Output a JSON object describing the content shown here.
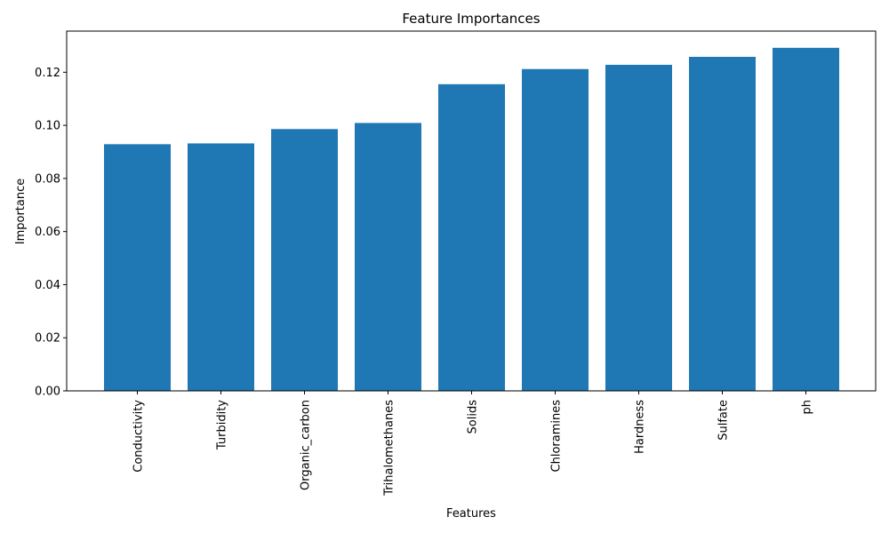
{
  "chart_data": {
    "type": "bar",
    "title": "Feature Importances",
    "xlabel": "Features",
    "ylabel": "Importance",
    "categories": [
      "Conductivity",
      "Turbidity",
      "Organic_carbon",
      "Trihalomethanes",
      "Solids",
      "Chloramines",
      "Hardness",
      "Sulfate",
      "ph"
    ],
    "values": [
      0.0929,
      0.0932,
      0.0986,
      0.1009,
      0.1155,
      0.1212,
      0.1228,
      0.1258,
      0.1292
    ],
    "ylim": [
      0,
      0.1355
    ],
    "yticks": [
      0.0,
      0.02,
      0.04,
      0.06,
      0.08,
      0.1,
      0.12
    ],
    "ytick_labels": [
      "0.00",
      "0.02",
      "0.04",
      "0.06",
      "0.08",
      "0.10",
      "0.12"
    ],
    "bar_color": "#1f77b4",
    "grid": false,
    "legend": "none"
  }
}
